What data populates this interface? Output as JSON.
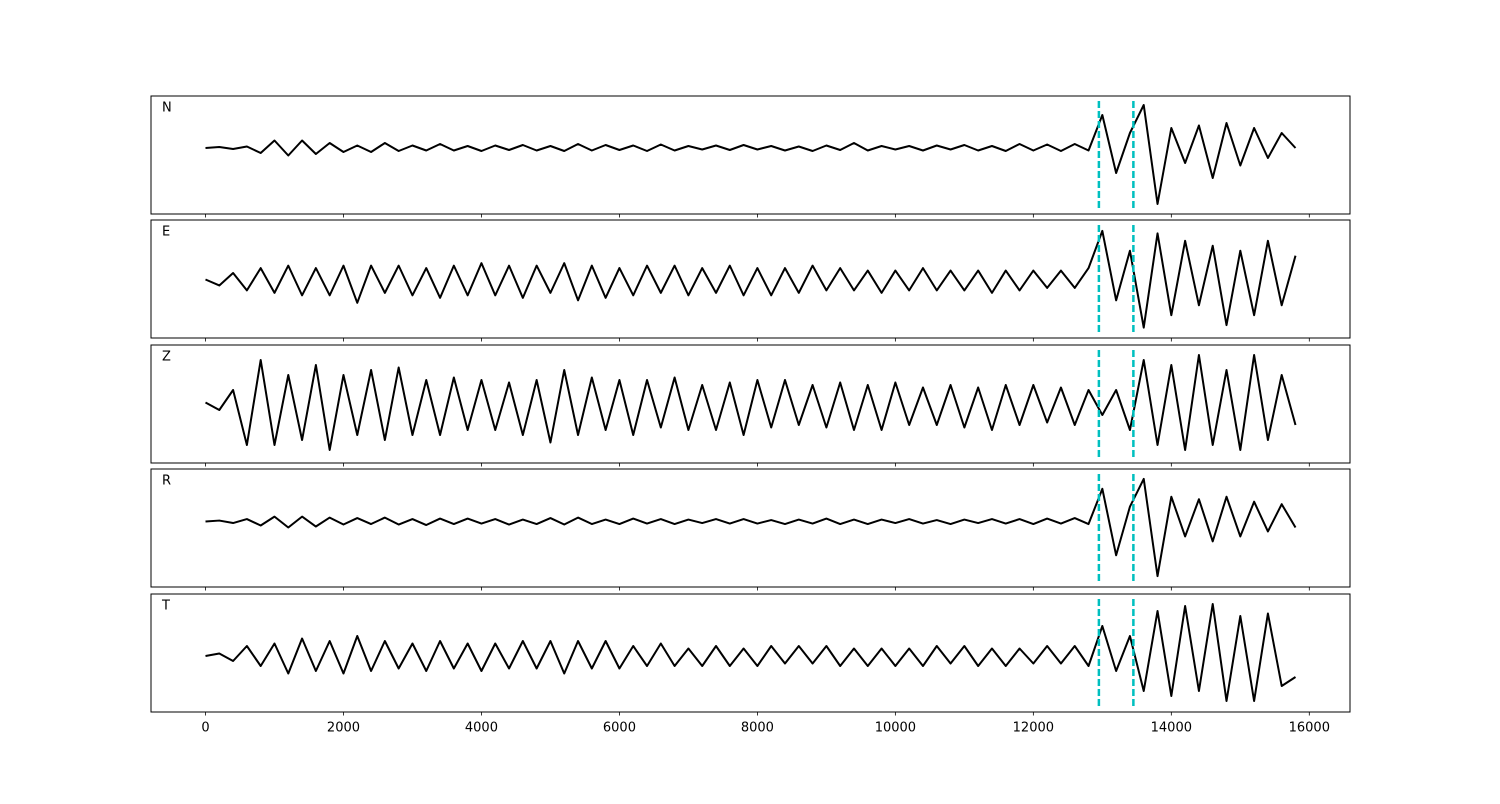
{
  "chart_data": {
    "type": "line",
    "x": [
      0,
      200,
      400,
      600,
      800,
      1000,
      1200,
      1400,
      1600,
      1800,
      2000,
      2200,
      2400,
      2600,
      2800,
      3000,
      3200,
      3400,
      3600,
      3800,
      4000,
      4200,
      4400,
      4600,
      4800,
      5000,
      5200,
      5400,
      5600,
      5800,
      6000,
      6200,
      6400,
      6600,
      6800,
      7000,
      7200,
      7400,
      7600,
      7800,
      8000,
      8200,
      8400,
      8600,
      8800,
      9000,
      9200,
      9400,
      9600,
      9800,
      10000,
      10200,
      10400,
      10600,
      10800,
      11000,
      11200,
      11400,
      11600,
      11800,
      12000,
      12200,
      12400,
      12600,
      12800,
      13000,
      13200,
      13400,
      13600,
      13800,
      14000,
      14200,
      14400,
      14600,
      14800,
      15000,
      15200,
      15400,
      15600,
      15800
    ],
    "xlim": [
      -790,
      16590
    ],
    "xticks": [
      0,
      2000,
      4000,
      6000,
      8000,
      10000,
      12000,
      14000,
      16000
    ],
    "vlines": [
      12950,
      13450
    ],
    "vline_color": "#00bfbf",
    "series": [
      {
        "name": "N",
        "color": "#000000",
        "ylim": [
          -1.32,
          1.04
        ],
        "values": [
          0,
          0.02,
          -0.02,
          0.03,
          -0.1,
          0.15,
          -0.15,
          0.15,
          -0.12,
          0.1,
          -0.08,
          0.05,
          -0.08,
          0.1,
          -0.06,
          0.05,
          -0.05,
          0.08,
          -0.05,
          0.04,
          -0.06,
          0.05,
          -0.04,
          0.06,
          -0.05,
          0.04,
          -0.06,
          0.08,
          -0.05,
          0.06,
          -0.04,
          0.05,
          -0.06,
          0.07,
          -0.05,
          0.04,
          -0.03,
          0.05,
          -0.04,
          0.06,
          -0.03,
          0.04,
          -0.05,
          0.03,
          -0.06,
          0.05,
          -0.04,
          0.1,
          -0.05,
          0.04,
          -0.03,
          0.04,
          -0.05,
          0.05,
          -0.03,
          0.06,
          -0.05,
          0.04,
          -0.06,
          0.08,
          -0.05,
          0.07,
          -0.06,
          0.08,
          -0.05,
          0.66,
          -0.5,
          0.3,
          0.86,
          -1.12,
          0.4,
          -0.3,
          0.45,
          -0.6,
          0.5,
          -0.35,
          0.4,
          -0.2,
          0.3,
          0
        ]
      },
      {
        "name": "E",
        "color": "#000000",
        "ylim": [
          -1.16,
          1.22
        ],
        "values": [
          0.02,
          -0.1,
          0.15,
          -0.2,
          0.25,
          -0.25,
          0.3,
          -0.3,
          0.25,
          -0.3,
          0.3,
          -0.45,
          0.3,
          -0.25,
          0.3,
          -0.3,
          0.25,
          -0.35,
          0.3,
          -0.3,
          0.35,
          -0.3,
          0.3,
          -0.35,
          0.3,
          -0.25,
          0.35,
          -0.4,
          0.3,
          -0.35,
          0.25,
          -0.3,
          0.3,
          -0.25,
          0.3,
          -0.3,
          0.25,
          -0.25,
          0.3,
          -0.3,
          0.25,
          -0.3,
          0.25,
          -0.25,
          0.3,
          -0.2,
          0.25,
          -0.2,
          0.2,
          -0.25,
          0.2,
          -0.2,
          0.25,
          -0.2,
          0.2,
          -0.2,
          0.2,
          -0.25,
          0.2,
          -0.2,
          0.2,
          -0.15,
          0.2,
          -0.15,
          0.25,
          1.0,
          -0.4,
          0.6,
          -0.95,
          0.95,
          -0.7,
          0.8,
          -0.5,
          0.7,
          -0.9,
          0.6,
          -0.7,
          0.8,
          -0.5,
          0.5
        ]
      },
      {
        "name": "Z",
        "color": "#000000",
        "ylim": [
          -1.16,
          1.2
        ],
        "values": [
          0.05,
          -0.1,
          0.3,
          -0.8,
          0.9,
          -0.8,
          0.6,
          -0.7,
          0.8,
          -0.9,
          0.6,
          -0.6,
          0.7,
          -0.7,
          0.75,
          -0.6,
          0.5,
          -0.6,
          0.55,
          -0.5,
          0.5,
          -0.5,
          0.45,
          -0.6,
          0.5,
          -0.75,
          0.7,
          -0.6,
          0.55,
          -0.5,
          0.5,
          -0.6,
          0.5,
          -0.45,
          0.55,
          -0.5,
          0.4,
          -0.5,
          0.45,
          -0.6,
          0.5,
          -0.45,
          0.5,
          -0.4,
          0.4,
          -0.45,
          0.45,
          -0.5,
          0.4,
          -0.5,
          0.45,
          -0.4,
          0.35,
          -0.4,
          0.4,
          -0.45,
          0.35,
          -0.5,
          0.4,
          -0.4,
          0.4,
          -0.35,
          0.35,
          -0.4,
          0.3,
          -0.2,
          0.3,
          -0.5,
          0.9,
          -0.8,
          0.8,
          -0.9,
          1.0,
          -0.8,
          0.7,
          -0.9,
          1.0,
          -0.7,
          0.6,
          -0.4
        ]
      },
      {
        "name": "R",
        "color": "#000000",
        "ylim": [
          -1.32,
          1.06
        ],
        "values": [
          0,
          0.02,
          -0.03,
          0.05,
          -0.08,
          0.1,
          -0.12,
          0.1,
          -0.1,
          0.08,
          -0.06,
          0.07,
          -0.05,
          0.08,
          -0.06,
          0.05,
          -0.07,
          0.06,
          -0.05,
          0.06,
          -0.04,
          0.05,
          -0.06,
          0.04,
          -0.05,
          0.07,
          -0.06,
          0.08,
          -0.05,
          0.04,
          -0.05,
          0.06,
          -0.04,
          0.05,
          -0.05,
          0.04,
          -0.03,
          0.05,
          -0.04,
          0.05,
          -0.04,
          0.03,
          -0.05,
          0.04,
          -0.04,
          0.06,
          -0.05,
          0.04,
          -0.05,
          0.04,
          -0.03,
          0.05,
          -0.04,
          0.03,
          -0.05,
          0.04,
          -0.03,
          0.05,
          -0.04,
          0.05,
          -0.05,
          0.06,
          -0.04,
          0.07,
          -0.05,
          0.66,
          -0.68,
          0.3,
          0.86,
          -1.1,
          0.5,
          -0.3,
          0.45,
          -0.4,
          0.5,
          -0.3,
          0.4,
          -0.2,
          0.35,
          -0.12
        ]
      },
      {
        "name": "T",
        "color": "#000000",
        "ylim": [
          -1.12,
          1.24
        ],
        "values": [
          0,
          0.05,
          -0.1,
          0.2,
          -0.2,
          0.25,
          -0.35,
          0.35,
          -0.3,
          0.3,
          -0.35,
          0.4,
          -0.3,
          0.3,
          -0.25,
          0.25,
          -0.3,
          0.3,
          -0.25,
          0.25,
          -0.3,
          0.25,
          -0.25,
          0.3,
          -0.25,
          0.3,
          -0.35,
          0.3,
          -0.25,
          0.3,
          -0.25,
          0.2,
          -0.2,
          0.25,
          -0.2,
          0.15,
          -0.2,
          0.2,
          -0.2,
          0.15,
          -0.2,
          0.2,
          -0.15,
          0.2,
          -0.15,
          0.2,
          -0.2,
          0.15,
          -0.2,
          0.15,
          -0.2,
          0.15,
          -0.2,
          0.2,
          -0.15,
          0.2,
          -0.2,
          0.15,
          -0.2,
          0.15,
          -0.15,
          0.2,
          -0.15,
          0.2,
          -0.2,
          0.6,
          -0.3,
          0.4,
          -0.7,
          0.9,
          -0.8,
          1.0,
          -0.7,
          1.04,
          -0.9,
          0.8,
          -0.9,
          0.85,
          -0.6,
          -0.42
        ]
      }
    ]
  }
}
